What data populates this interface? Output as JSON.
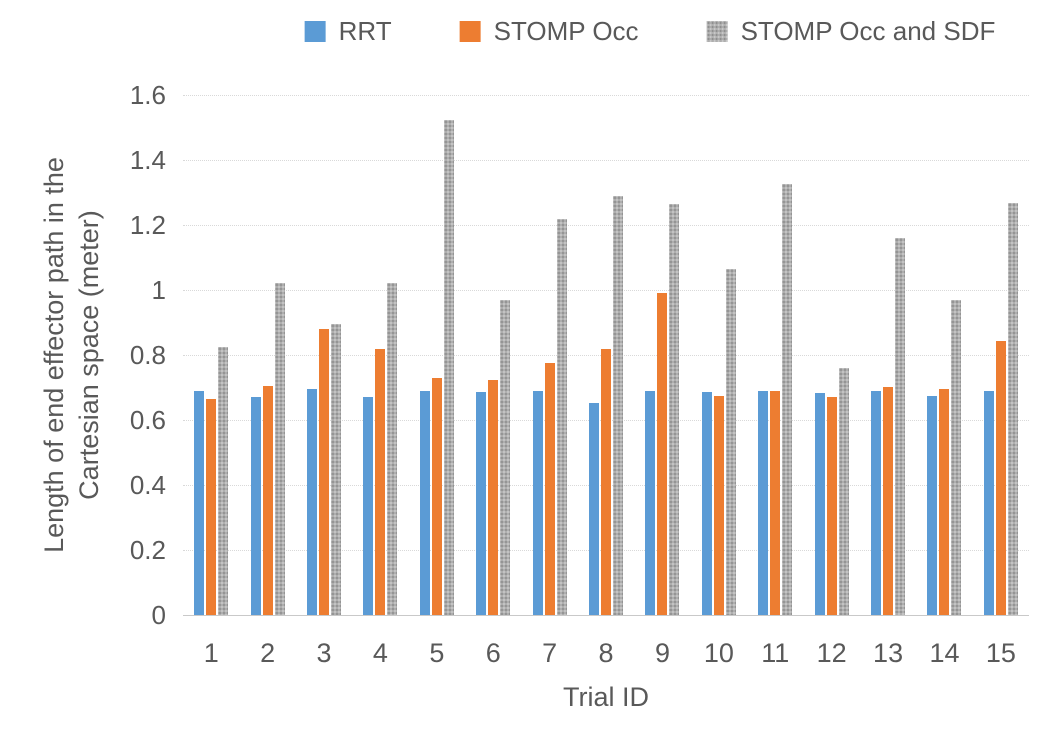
{
  "chart_data": {
    "type": "bar",
    "title": "",
    "xlabel": "Trial ID",
    "ylabel": "Length of end effector path in the Cartesian space (meter)",
    "ylabel_lines": [
      "Length of end effector path in the",
      "Cartesian space (meter)"
    ],
    "categories": [
      "1",
      "2",
      "3",
      "4",
      "5",
      "6",
      "7",
      "8",
      "9",
      "10",
      "11",
      "12",
      "13",
      "14",
      "15"
    ],
    "series": [
      {
        "name": "RRT",
        "color": "#5B9BD5",
        "pattern": false,
        "values": [
          0.69,
          0.672,
          0.695,
          0.672,
          0.69,
          0.687,
          0.69,
          0.653,
          0.69,
          0.685,
          0.69,
          0.683,
          0.689,
          0.674,
          0.69
        ]
      },
      {
        "name": "STOMP Occ",
        "color": "#ED7D31",
        "pattern": false,
        "values": [
          0.665,
          0.706,
          0.879,
          0.818,
          0.729,
          0.723,
          0.775,
          0.817,
          0.99,
          0.675,
          0.688,
          0.67,
          0.703,
          0.696,
          0.843
        ]
      },
      {
        "name": "STOMP Occ and SDF",
        "color": "#A5A5A5",
        "pattern": true,
        "values": [
          0.824,
          1.021,
          0.896,
          1.023,
          1.522,
          0.968,
          1.217,
          1.29,
          1.264,
          1.065,
          1.325,
          0.761,
          1.159,
          0.969,
          1.269
        ]
      }
    ],
    "ylim": [
      0,
      1.6
    ],
    "ytick_step": 0.2,
    "yticks": [
      "0",
      "0.2",
      "0.4",
      "0.6",
      "0.8",
      "1",
      "1.2",
      "1.4",
      "1.6"
    ],
    "grid": true,
    "legend_position": "top"
  },
  "colors": {
    "axis_text": "#595959",
    "gridline": "#D9D9D9",
    "background": "#FFFFFF"
  }
}
